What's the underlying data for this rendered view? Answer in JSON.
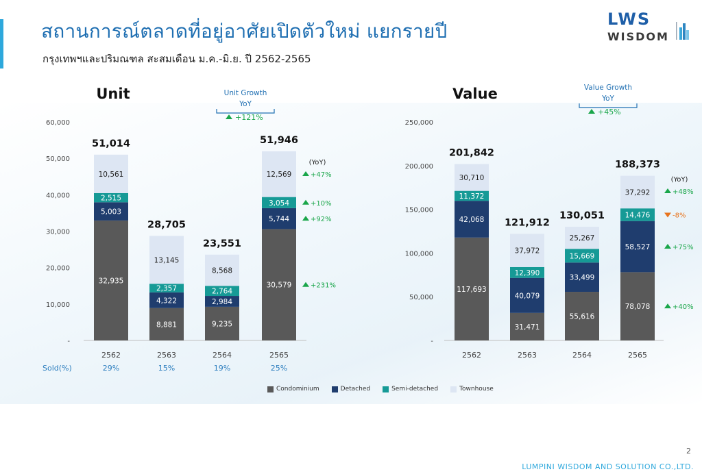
{
  "header": {
    "title": "สถานการณ์ตลาดที่อยู่อาศัยเปิดตัวใหม่ แยกรายปี",
    "subtitle": "กรุงเทพฯและปริมณฑล สะสมเดือน ม.ค.-มิ.ย. ปี 2562-2565"
  },
  "logo": {
    "main": "LWS",
    "sub": "WISDOM"
  },
  "footer": {
    "page_number": "2",
    "company": "LUMPINI WISDOM AND SOLUTION CO.,LTD."
  },
  "colors": {
    "condominium": "#595959",
    "detached": "#1f3d6e",
    "semi_detached": "#169a96",
    "townhouse": "#dde6f3",
    "growth_up": "#1aa64a",
    "growth_down": "#e8741e",
    "accent": "#1f6fb2",
    "sold": "#2e7fbf"
  },
  "legend": [
    "Condominium",
    "Detached",
    "Semi-detached",
    "Townhouse"
  ],
  "chart_data": [
    {
      "type": "bar",
      "stacked": true,
      "title": "Unit",
      "categories": [
        "2562",
        "2563",
        "2564",
        "2565"
      ],
      "ylim": [
        0,
        60000
      ],
      "yticks": [
        "60,000",
        "50,000",
        "40,000",
        "30,000",
        "20,000",
        "10,000",
        "-"
      ],
      "ytick_values": [
        60000,
        50000,
        40000,
        30000,
        20000,
        10000,
        0
      ],
      "series": [
        {
          "name": "Condominium",
          "values": [
            32935,
            8881,
            9235,
            30579
          ],
          "labels": [
            "32,935",
            "8,881",
            "9,235",
            "30,579"
          ]
        },
        {
          "name": "Detached",
          "values": [
            5003,
            4322,
            2984,
            5744
          ],
          "labels": [
            "5,003",
            "4,322",
            "2,984",
            "5,744"
          ]
        },
        {
          "name": "Semi-detached",
          "values": [
            2515,
            2357,
            2764,
            3054
          ],
          "labels": [
            "2,515",
            "2,357",
            "2,764",
            "3,054"
          ]
        },
        {
          "name": "Townhouse",
          "values": [
            10561,
            13145,
            8568,
            12569
          ],
          "labels": [
            "10,561",
            "13,145",
            "8,568",
            "12,569"
          ]
        }
      ],
      "totals": [
        "51,014",
        "28,705",
        "23,551",
        "51,946"
      ],
      "growth_box": {
        "title": "Unit Growth",
        "subtitle": "YoY",
        "value": "+121%",
        "direction": "up"
      },
      "yoy_header": "(YoY)",
      "yoy": [
        {
          "series": "Townhouse",
          "value": "+47%",
          "direction": "up"
        },
        {
          "series": "Semi-detached",
          "value": "+10%",
          "direction": "up"
        },
        {
          "series": "Detached",
          "value": "+92%",
          "direction": "up"
        },
        {
          "series": "Condominium",
          "value": "+231%",
          "direction": "up"
        }
      ],
      "sold_label": "Sold(%)",
      "sold": [
        "29%",
        "15%",
        "19%",
        "25%"
      ]
    },
    {
      "type": "bar",
      "stacked": true,
      "title": "Value",
      "categories": [
        "2562",
        "2563",
        "2564",
        "2565"
      ],
      "ylim": [
        0,
        250000
      ],
      "yticks": [
        "250,000",
        "200,000",
        "150,000",
        "100,000",
        "50,000",
        "-"
      ],
      "ytick_values": [
        250000,
        200000,
        150000,
        100000,
        50000,
        0
      ],
      "series": [
        {
          "name": "Condominium",
          "values": [
            117693,
            31471,
            55616,
            78078
          ],
          "labels": [
            "117,693",
            "31,471",
            "55,616",
            "78,078"
          ]
        },
        {
          "name": "Detached",
          "values": [
            42068,
            40079,
            33499,
            58527
          ],
          "labels": [
            "42,068",
            "40,079",
            "33,499",
            "58,527"
          ]
        },
        {
          "name": "Semi-detached",
          "values": [
            11372,
            12390,
            15669,
            14476
          ],
          "labels": [
            "11,372",
            "12,390",
            "15,669",
            "14,476"
          ]
        },
        {
          "name": "Townhouse",
          "values": [
            30710,
            37972,
            25267,
            37292
          ],
          "labels": [
            "30,710",
            "37,972",
            "25,267",
            "37,292"
          ]
        }
      ],
      "totals": [
        "201,842",
        "121,912",
        "130,051",
        "188,373"
      ],
      "growth_box": {
        "title": "Value Growth",
        "subtitle": "YoY",
        "value": "+45%",
        "direction": "up"
      },
      "yoy_header": "(YoY)",
      "yoy": [
        {
          "series": "Townhouse",
          "value": "+48%",
          "direction": "up"
        },
        {
          "series": "Semi-detached",
          "value": "-8%",
          "direction": "down"
        },
        {
          "series": "Detached",
          "value": "+75%",
          "direction": "up"
        },
        {
          "series": "Condominium",
          "value": "+40%",
          "direction": "up"
        }
      ]
    }
  ]
}
